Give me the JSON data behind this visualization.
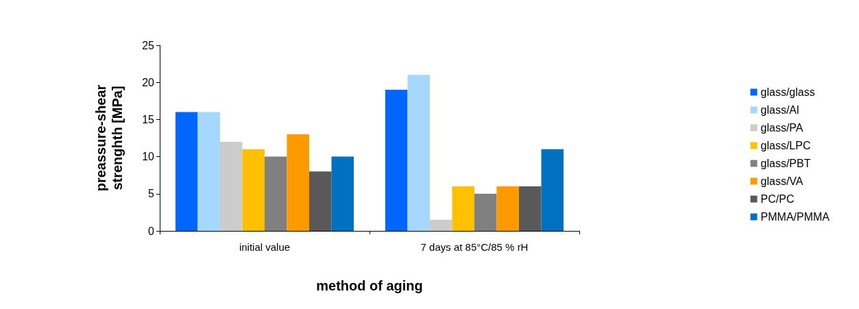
{
  "chart_data": {
    "type": "bar",
    "xlabel": "method of aging",
    "ylabel": "preassure-shear\nstrenghth [MPa]",
    "categories": [
      "initial value",
      "7 days at 85°C/85 % rH"
    ],
    "ylim": [
      0,
      25
    ],
    "yticks": [
      0,
      5,
      10,
      15,
      20,
      25
    ],
    "grid": false,
    "legend": "right",
    "series": [
      {
        "name": "glass/glass",
        "color": "#0066ff",
        "values": [
          16,
          19
        ]
      },
      {
        "name": "glass/Al",
        "color": "#a6d8ff",
        "values": [
          16,
          21
        ]
      },
      {
        "name": "glass/PA",
        "color": "#cccccc",
        "values": [
          12,
          1.5
        ]
      },
      {
        "name": "glass/LPC",
        "color": "#ffc000",
        "values": [
          11,
          6
        ]
      },
      {
        "name": "glass/PBT",
        "color": "#808080",
        "values": [
          10,
          5
        ]
      },
      {
        "name": "glass/VA",
        "color": "#ff9900",
        "values": [
          13,
          6
        ]
      },
      {
        "name": "PC/PC",
        "color": "#595959",
        "values": [
          8,
          6
        ]
      },
      {
        "name": "PMMA/PMMA",
        "color": "#0070c0",
        "values": [
          10,
          11
        ]
      }
    ]
  }
}
